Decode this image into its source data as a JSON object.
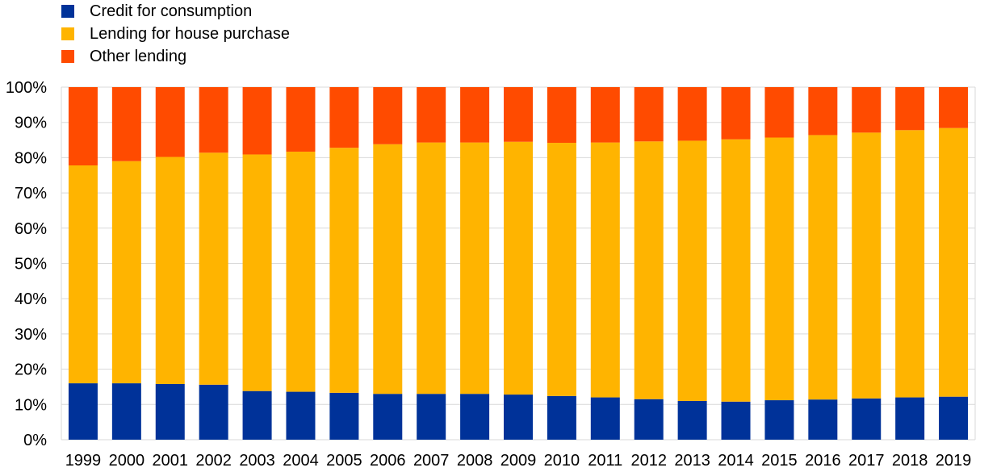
{
  "chart_data": {
    "type": "bar",
    "stacked": true,
    "categories": [
      "1999",
      "2000",
      "2001",
      "2002",
      "2003",
      "2004",
      "2005",
      "2006",
      "2007",
      "2008",
      "2009",
      "2010",
      "2011",
      "2012",
      "2013",
      "2014",
      "2015",
      "2016",
      "2017",
      "2018",
      "2019"
    ],
    "series": [
      {
        "name": "Credit for consumption",
        "color": "#003299",
        "values": [
          16.0,
          16.0,
          15.8,
          15.6,
          13.8,
          13.6,
          13.3,
          13.0,
          13.0,
          13.0,
          12.8,
          12.4,
          12.0,
          11.5,
          11.0,
          10.8,
          11.2,
          11.4,
          11.7,
          12.0,
          12.2
        ]
      },
      {
        "name": "Lending for house purchase",
        "color": "#FFB400",
        "values": [
          61.8,
          63.0,
          64.4,
          65.8,
          67.1,
          68.1,
          69.5,
          70.8,
          71.3,
          71.3,
          71.7,
          71.8,
          72.3,
          73.1,
          73.8,
          74.4,
          74.5,
          75.0,
          75.4,
          75.8,
          76.2
        ]
      },
      {
        "name": "Other lending",
        "color": "#FF4B00",
        "values": [
          22.2,
          21.0,
          19.8,
          18.6,
          19.1,
          18.3,
          17.2,
          16.2,
          15.7,
          15.7,
          15.5,
          15.8,
          15.7,
          15.4,
          15.2,
          14.8,
          14.3,
          13.6,
          12.9,
          12.2,
          11.6
        ]
      }
    ],
    "y_ticks": [
      "0%",
      "10%",
      "20%",
      "30%",
      "40%",
      "50%",
      "60%",
      "70%",
      "80%",
      "90%",
      "100%"
    ],
    "ylim": [
      0,
      100
    ],
    "legend_position": "top-left",
    "grid": true,
    "title": "",
    "xlabel": "",
    "ylabel": ""
  }
}
